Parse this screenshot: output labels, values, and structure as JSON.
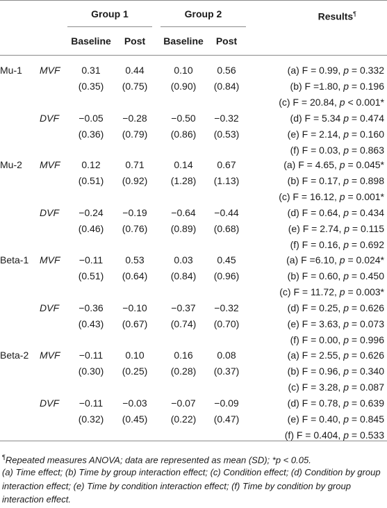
{
  "header": {
    "group1": "Group 1",
    "group2": "Group 2",
    "results": "Results",
    "results_mark": "¶",
    "baseline": "Baseline",
    "post": "Post"
  },
  "rows": [
    {
      "band": "Mu-1",
      "conditions": [
        {
          "cond": "MVF",
          "g1b": "0.31",
          "g1b_sd": "(0.35)",
          "g1p": "0.44",
          "g1p_sd": "(0.75)",
          "g2b": "0.10",
          "g2b_sd": "(0.90)",
          "g2p": "0.56",
          "g2p_sd": "(0.84)"
        },
        {
          "cond": "DVF",
          "g1b": "−0.05",
          "g1b_sd": "(0.36)",
          "g1p": "−0.28",
          "g1p_sd": "(0.79)",
          "g2b": "−0.50",
          "g2b_sd": "(0.86)",
          "g2p": "−0.32",
          "g2p_sd": "(0.53)"
        }
      ],
      "results": [
        {
          "pre": "(a) F = 0.99, ",
          "p": "p",
          "post": " = 0.332"
        },
        {
          "pre": "(b) F =1.80, ",
          "p": "p",
          "post": " = 0.196"
        },
        {
          "pre": "(c) F = 20.84, ",
          "p": "p",
          "post": " < 0.001*"
        },
        {
          "pre": "(d) F = 5.34 ",
          "p": "p",
          "post": " = 0.474"
        },
        {
          "pre": "(e) F = 2.14, ",
          "p": "p",
          "post": " = 0.160"
        },
        {
          "pre": "(f) F = 0.03, ",
          "p": "p",
          "post": " = 0.863"
        }
      ]
    },
    {
      "band": "Mu-2",
      "conditions": [
        {
          "cond": "MVF",
          "g1b": "0.12",
          "g1b_sd": "(0.51)",
          "g1p": "0.71",
          "g1p_sd": "(0.92)",
          "g2b": "0.14",
          "g2b_sd": "(1.28)",
          "g2p": "0.67",
          "g2p_sd": "(1.13)"
        },
        {
          "cond": "DVF",
          "g1b": "−0.24",
          "g1b_sd": "(0.46)",
          "g1p": "−0.19",
          "g1p_sd": "(0.76)",
          "g2b": "−0.64",
          "g2b_sd": "(0.89)",
          "g2p": "−0.44",
          "g2p_sd": "(0.68)"
        }
      ],
      "results": [
        {
          "pre": "(a) F = 4.65, ",
          "p": "p",
          "post": " = 0.045*"
        },
        {
          "pre": "(b) F = 0.17, ",
          "p": "p",
          "post": " = 0.898"
        },
        {
          "pre": "(c) F = 16.12, ",
          "p": "p",
          "post": " = 0.001*"
        },
        {
          "pre": "(d) F = 0.64, ",
          "p": "p",
          "post": " = 0.434"
        },
        {
          "pre": "(e) F = 2.74, ",
          "p": "p",
          "post": " = 0.115"
        },
        {
          "pre": "(f) F = 0.16, ",
          "p": "p",
          "post": " = 0.692"
        }
      ]
    },
    {
      "band": "Beta-1",
      "conditions": [
        {
          "cond": "MVF",
          "g1b": "−0.11",
          "g1b_sd": "(0.51)",
          "g1p": "0.53",
          "g1p_sd": "(0.64)",
          "g2b": "0.03",
          "g2b_sd": "(0.84)",
          "g2p": "0.45",
          "g2p_sd": "(0.96)"
        },
        {
          "cond": "DVF",
          "g1b": "−0.36",
          "g1b_sd": "(0.43)",
          "g1p": "−0.10",
          "g1p_sd": "(0.67)",
          "g2b": "−0.37",
          "g2b_sd": "(0.74)",
          "g2p": "−0.32",
          "g2p_sd": "(0.70)"
        }
      ],
      "results": [
        {
          "pre": "(a) F =6.10, ",
          "p": "p",
          "post": " = 0.024*"
        },
        {
          "pre": "(b) F = 0.60, ",
          "p": "p",
          "post": " = 0.450"
        },
        {
          "pre": "(c) F = 11.72, ",
          "p": "p",
          "post": " = 0.003*"
        },
        {
          "pre": "(d) F = 0.25, ",
          "p": "p",
          "post": " = 0.626"
        },
        {
          "pre": "(e) F = 3.63, ",
          "p": "p",
          "post": " = 0.073"
        },
        {
          "pre": "(f) F = 0.00, ",
          "p": "p",
          "post": " = 0.996"
        }
      ]
    },
    {
      "band": "Beta-2",
      "conditions": [
        {
          "cond": "MVF",
          "g1b": "−0.11",
          "g1b_sd": "(0.30)",
          "g1p": "0.10",
          "g1p_sd": "(0.25)",
          "g2b": "0.16",
          "g2b_sd": "(0.28)",
          "g2p": "0.08",
          "g2p_sd": "(0.37)"
        },
        {
          "cond": "DVF",
          "g1b": "−0.11",
          "g1b_sd": "(0.32)",
          "g1p": "−0.03",
          "g1p_sd": "(0.45)",
          "g2b": "−0.07",
          "g2b_sd": "(0.22)",
          "g2p": "−0.09",
          "g2p_sd": "(0.47)"
        }
      ],
      "results": [
        {
          "pre": "(a) F = 2.55, ",
          "p": "p",
          "post": " = 0.626"
        },
        {
          "pre": "(b) F = 0.96, ",
          "p": "p",
          "post": " = 0.340"
        },
        {
          "pre": "(c) F = 3.28, ",
          "p": "p",
          "post": " = 0.087"
        },
        {
          "pre": "(d) F = 0.78, ",
          "p": "p",
          "post": " = 0.639"
        },
        {
          "pre": "(e) F = 0.40, ",
          "p": "p",
          "post": " = 0.845"
        },
        {
          "pre": "(f) F = 0.404, ",
          "p": "p",
          "post": " = 0.533"
        }
      ]
    }
  ],
  "footnotes": {
    "line1_mark": "¶",
    "line1": "Repeated measures ANOVA; data are represented as mean (SD); *p < 0.05.",
    "line2": "(a) Time effect; (b) Time by group interaction effect; (c) Condition effect; (d) Condition by group interaction effect; (e) Time by condition interaction effect; (f) Time by condition by group interaction effect."
  }
}
